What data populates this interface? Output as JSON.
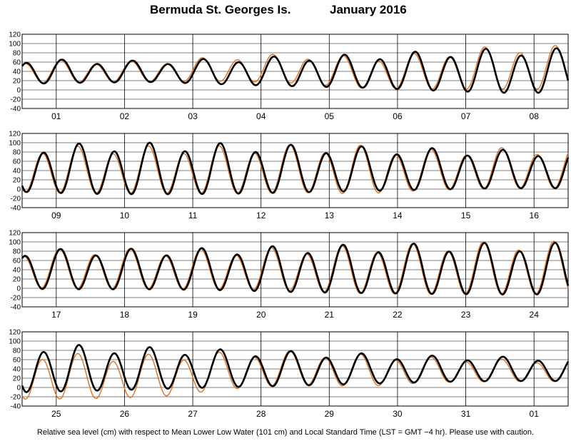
{
  "header": {
    "station": "Bermuda St. Georges Is.",
    "month": "January   2016"
  },
  "footer": {
    "note": "Relative sea level (cm) with respect to Mean Lower Low Water (101 cm) and Local Standard Time (LST = GMT −4 hr). Please use with caution."
  },
  "colors": {
    "predicted": "#000000",
    "observed": "#e07020",
    "grid": "#000000"
  },
  "chart_data": [
    {
      "type": "line",
      "x": [
        "01",
        "02",
        "03",
        "04",
        "05",
        "06",
        "07",
        "08"
      ],
      "ylim": [
        -40,
        120
      ],
      "yticks": [
        -40,
        -20,
        0,
        20,
        40,
        60,
        80,
        100,
        120
      ],
      "series": [
        {
          "amp_predicted": [
            25,
            22,
            21,
            26,
            30,
            33,
            39,
            44
          ],
          "mean_predicted": [
            38,
            38,
            38,
            38,
            38,
            38,
            38,
            38
          ],
          "amp_observed": [
            23,
            21,
            20,
            25,
            29,
            31,
            36,
            43
          ],
          "mean_observed": [
            38,
            38,
            38,
            44,
            44,
            35,
            38,
            45
          ]
        }
      ]
    },
    {
      "type": "line",
      "x": [
        "09",
        "10",
        "11",
        "12",
        "13",
        "14",
        "15",
        "16"
      ],
      "ylim": [
        -40,
        120
      ],
      "yticks": [
        -40,
        -20,
        0,
        20,
        40,
        60,
        80,
        100,
        120
      ],
      "series": [
        {
          "amp_predicted": [
            46,
            50,
            51,
            50,
            47,
            44,
            41,
            38
          ],
          "mean_predicted": [
            40,
            40,
            40,
            40,
            40,
            40,
            40,
            40
          ],
          "amp_observed": [
            46,
            46,
            47,
            47,
            47,
            48,
            40,
            40
          ],
          "mean_observed": [
            40,
            38,
            38,
            38,
            40,
            38,
            38,
            42
          ]
        }
      ]
    },
    {
      "type": "line",
      "x": [
        "17",
        "18",
        "19",
        "20",
        "21",
        "22",
        "23",
        "24"
      ],
      "ylim": [
        -40,
        120
      ],
      "yticks": [
        -40,
        -20,
        0,
        20,
        40,
        60,
        80,
        100,
        120
      ],
      "series": [
        {
          "amp_predicted": [
            39,
            40,
            40,
            42,
            46,
            48,
            50,
            51
          ],
          "mean_predicted": [
            38,
            38,
            38,
            38,
            38,
            38,
            38,
            38
          ],
          "amp_observed": [
            37,
            40,
            39,
            40,
            43,
            48,
            50,
            52
          ],
          "mean_observed": [
            38,
            40,
            38,
            38,
            38,
            37,
            38,
            40
          ]
        }
      ]
    },
    {
      "type": "line",
      "x": [
        "25",
        "26",
        "27",
        "28",
        "29",
        "30",
        "31",
        "01"
      ],
      "ylim": [
        -40,
        120
      ],
      "yticks": [
        -40,
        -20,
        0,
        20,
        40,
        60,
        80,
        100,
        120
      ],
      "series": [
        {
          "amp_predicted": [
            48,
            45,
            41,
            37,
            34,
            30,
            26,
            24
          ],
          "mean_predicted": [
            38,
            38,
            38,
            38,
            38,
            38,
            38,
            38
          ],
          "amp_observed": [
            48,
            44,
            42,
            37,
            33,
            32,
            25,
            22
          ],
          "mean_observed": [
            23,
            20,
            22,
            33,
            40,
            34,
            36,
            35
          ]
        }
      ]
    }
  ]
}
